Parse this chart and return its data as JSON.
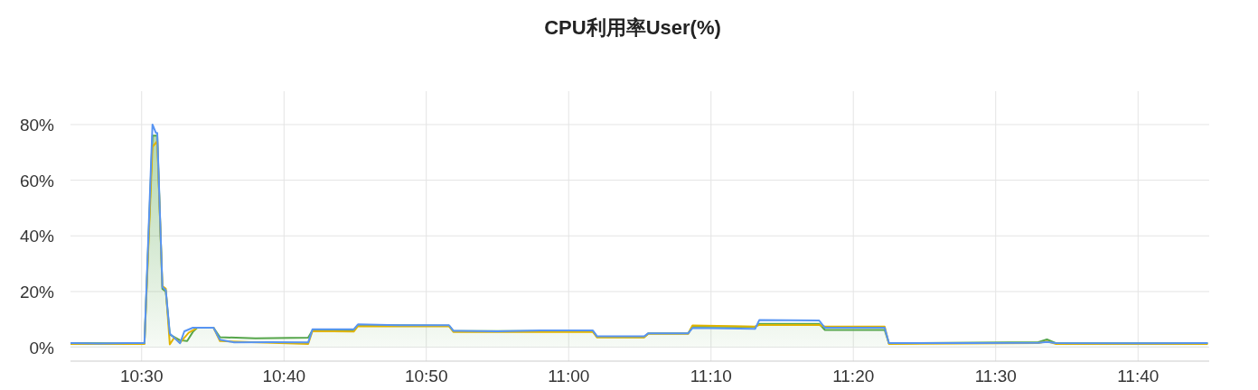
{
  "chart_data": {
    "type": "line",
    "title": "CPU利用率User(%)",
    "xlim": [
      10.4167,
      11.75
    ],
    "xticks": [
      {
        "value": 10.5,
        "label": "10:30"
      },
      {
        "value": 10.6667,
        "label": "10:40"
      },
      {
        "value": 10.8333,
        "label": "10:50"
      },
      {
        "value": 11.0,
        "label": "11:00"
      },
      {
        "value": 11.1667,
        "label": "11:10"
      },
      {
        "value": 11.3333,
        "label": "11:20"
      },
      {
        "value": 11.5,
        "label": "11:30"
      },
      {
        "value": 11.6667,
        "label": "11:40"
      }
    ],
    "ylim": [
      -5,
      92
    ],
    "yticks": [
      {
        "value": 0,
        "label": "0%"
      },
      {
        "value": 20,
        "label": "20%"
      },
      {
        "value": 40,
        "label": "40%"
      },
      {
        "value": 60,
        "label": "60%"
      },
      {
        "value": 80,
        "label": "80%"
      }
    ],
    "grid": true,
    "marker": "none",
    "line_style": "solid",
    "series": [
      {
        "type": "area",
        "color": "#56a64b",
        "x": [
          10.4167,
          10.5033,
          10.5127,
          10.5183,
          10.5243,
          10.5283,
          10.533,
          10.545,
          10.5533,
          10.56,
          10.565,
          10.5842,
          10.5917,
          10.6333,
          10.695,
          10.7,
          10.7483,
          10.7533,
          10.86,
          10.865,
          11.0283,
          11.0333,
          11.0883,
          11.0933,
          11.14,
          11.145,
          11.2183,
          11.2233,
          11.2933,
          11.3,
          11.37,
          11.375,
          11.55,
          11.56,
          11.57,
          11.7483
        ],
        "values": [
          1.5,
          1.3,
          76,
          76,
          21,
          20,
          4.5,
          2.5,
          2.2,
          5.5,
          7.0,
          7.0,
          3.6,
          3.2,
          3.4,
          6.0,
          6.0,
          8.0,
          7.7,
          5.8,
          5.8,
          3.7,
          3.6,
          5.0,
          5.0,
          7.5,
          7.3,
          8.4,
          8.4,
          6.2,
          6.2,
          1.4,
          1.8,
          2.8,
          1.5,
          1.4
        ]
      },
      {
        "color": "#e0b400",
        "x": [
          10.4167,
          10.5033,
          10.5127,
          10.5183,
          10.5243,
          10.5283,
          10.533,
          10.5383,
          10.545,
          10.555,
          10.565,
          10.5842,
          10.5917,
          10.695,
          10.7,
          10.7483,
          10.7533,
          10.86,
          10.865,
          11.0283,
          11.0333,
          11.0883,
          11.0933,
          11.14,
          11.145,
          11.2183,
          11.2233,
          11.2933,
          11.3,
          11.37,
          11.375,
          11.55,
          11.56,
          11.57,
          11.7483
        ],
        "values": [
          1.2,
          1.2,
          72,
          74,
          22,
          21,
          1.0,
          3.5,
          1.6,
          5.2,
          7.0,
          7.0,
          2.2,
          1.2,
          5.8,
          5.6,
          7.6,
          7.5,
          5.5,
          5.5,
          3.5,
          3.5,
          4.8,
          4.8,
          7.8,
          7.4,
          8.0,
          8.0,
          7.4,
          7.4,
          1.2,
          1.5,
          2.1,
          1.2,
          1.2
        ]
      },
      {
        "color": "#5794f2",
        "x": [
          10.4167,
          10.45,
          10.4833,
          10.5033,
          10.5127,
          10.5167,
          10.5183,
          10.5243,
          10.5283,
          10.533,
          10.545,
          10.55,
          10.56,
          10.5842,
          10.5917,
          10.6083,
          10.65,
          10.695,
          10.7,
          10.7483,
          10.7533,
          10.8,
          10.86,
          10.865,
          10.9167,
          10.9667,
          11.0283,
          11.0333,
          11.0883,
          11.0933,
          11.14,
          11.145,
          11.2183,
          11.2233,
          11.2933,
          11.3,
          11.37,
          11.375,
          11.4667,
          11.55,
          11.56,
          11.57,
          11.6667,
          11.7483
        ],
        "values": [
          1.5,
          1.3,
          1.5,
          1.5,
          80,
          77,
          77,
          21.6,
          20.5,
          4.9,
          1.4,
          5.7,
          7,
          7,
          2.7,
          1.7,
          1.8,
          1.7,
          6.4,
          6.4,
          8.2,
          7.9,
          7.9,
          5.9,
          5.7,
          6.0,
          6.0,
          3.9,
          3.9,
          5.0,
          5.0,
          6.9,
          6.6,
          9.8,
          9.6,
          7.0,
          7.0,
          1.5,
          1.5,
          1.6,
          1.9,
          1.5,
          1.4,
          1.5
        ]
      }
    ]
  }
}
